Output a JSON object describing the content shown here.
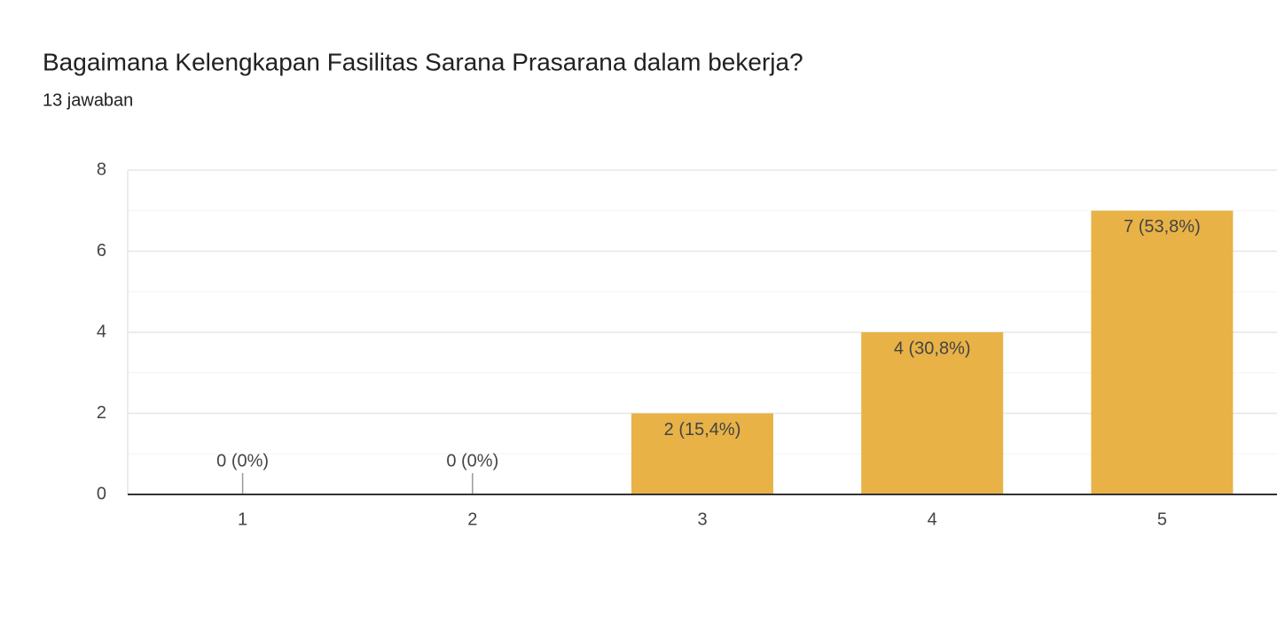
{
  "chart_data": {
    "type": "bar",
    "title": "Bagaimana Kelengkapan Fasilitas Sarana Prasarana dalam bekerja?",
    "subtitle": "13 jawaban",
    "categories": [
      "1",
      "2",
      "3",
      "4",
      "5"
    ],
    "values": [
      0,
      0,
      2,
      4,
      7
    ],
    "value_labels": [
      "0 (0%)",
      "0 (0%)",
      "2 (15,4%)",
      "4 (30,8%)",
      "7 (53,8%)"
    ],
    "color": "#e8b247",
    "ylim": [
      0,
      8
    ],
    "yticks": [
      0,
      2,
      4,
      6,
      8
    ],
    "grid": true
  }
}
